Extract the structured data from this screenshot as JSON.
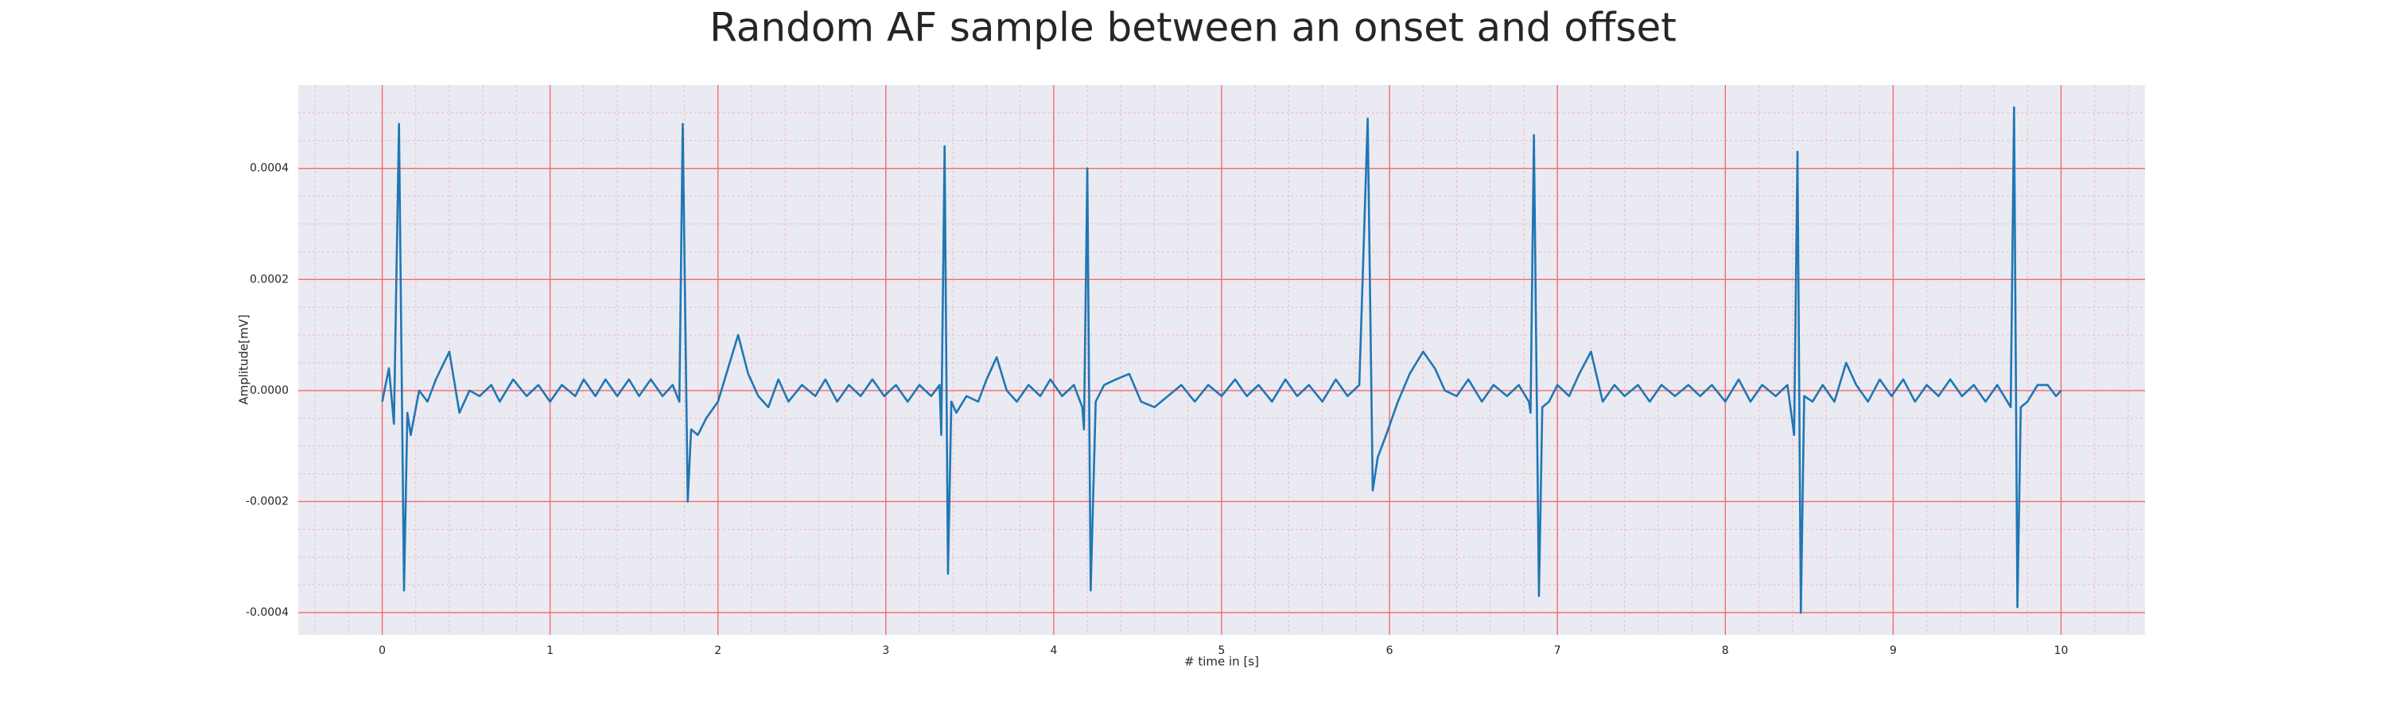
{
  "chart_data": {
    "type": "line",
    "title": "Random AF sample between an onset and offset",
    "xlabel": "# time in [s]",
    "ylabel": "Amplitude[mV]",
    "color": "#1f77b4",
    "grid": true,
    "minor_grid": true,
    "xlim": [
      -0.5,
      10.5
    ],
    "xticks": [
      0,
      1,
      2,
      3,
      4,
      5,
      6,
      7,
      8,
      9,
      10
    ],
    "ylim": [
      -0.00044,
      0.00055
    ],
    "yticks": [
      -0.0004,
      -0.0002,
      {
        "value": 0,
        "label": "0.0000"
      },
      0.0002,
      0.0004
    ],
    "x": [
      0,
      0.04,
      0.07,
      0.1,
      0.13,
      0.15,
      0.17,
      0.22,
      0.27,
      0.32,
      0.4,
      0.46,
      0.52,
      0.58,
      0.65,
      0.7,
      0.78,
      0.86,
      0.93,
      1.0,
      1.07,
      1.15,
      1.2,
      1.27,
      1.33,
      1.4,
      1.47,
      1.53,
      1.6,
      1.67,
      1.73,
      1.77,
      1.79,
      1.82,
      1.84,
      1.88,
      1.93,
      2.0,
      2.06,
      2.12,
      2.18,
      2.24,
      2.3,
      2.36,
      2.42,
      2.5,
      2.58,
      2.64,
      2.71,
      2.78,
      2.85,
      2.92,
      2.99,
      3.06,
      3.13,
      3.2,
      3.27,
      3.32,
      3.33,
      3.35,
      3.37,
      3.39,
      3.42,
      3.48,
      3.55,
      3.6,
      3.66,
      3.72,
      3.78,
      3.85,
      3.92,
      3.98,
      4.05,
      4.12,
      4.17,
      4.18,
      4.2,
      4.22,
      4.25,
      4.3,
      4.37,
      4.45,
      4.52,
      4.6,
      4.68,
      4.76,
      4.84,
      4.92,
      5.0,
      5.08,
      5.15,
      5.22,
      5.3,
      5.38,
      5.45,
      5.52,
      5.6,
      5.68,
      5.75,
      5.82,
      5.87,
      5.9,
      5.93,
      5.98,
      6.05,
      6.12,
      6.2,
      6.27,
      6.33,
      6.4,
      6.47,
      6.55,
      6.62,
      6.7,
      6.77,
      6.83,
      6.84,
      6.86,
      6.89,
      6.91,
      6.95,
      7.0,
      7.07,
      7.13,
      7.2,
      7.27,
      7.34,
      7.4,
      7.48,
      7.55,
      7.62,
      7.7,
      7.78,
      7.85,
      7.92,
      8.0,
      8.08,
      8.15,
      8.22,
      8.3,
      8.37,
      8.41,
      8.43,
      8.45,
      8.47,
      8.52,
      8.58,
      8.65,
      8.72,
      8.78,
      8.85,
      8.92,
      8.99,
      9.06,
      9.13,
      9.2,
      9.27,
      9.34,
      9.41,
      9.48,
      9.55,
      9.62,
      9.68,
      9.7,
      9.72,
      9.74,
      9.76,
      9.8,
      9.86,
      9.92,
      9.97,
      10.0
    ],
    "values": [
      -2e-05,
      4e-05,
      -6e-05,
      0.00048,
      -0.00036,
      -4e-05,
      -8e-05,
      0,
      -2e-05,
      2e-05,
      7e-05,
      -4e-05,
      0,
      -1e-05,
      1e-05,
      -2e-05,
      2e-05,
      -1e-05,
      1e-05,
      -2e-05,
      1e-05,
      -1e-05,
      2e-05,
      -1e-05,
      2e-05,
      -1e-05,
      2e-05,
      -1e-05,
      2e-05,
      -1e-05,
      1e-05,
      -2e-05,
      0.00048,
      -0.0002,
      -7e-05,
      -8e-05,
      -5e-05,
      -2e-05,
      4e-05,
      0.0001,
      3e-05,
      -1e-05,
      -3e-05,
      2e-05,
      -2e-05,
      1e-05,
      -1e-05,
      2e-05,
      -2e-05,
      1e-05,
      -1e-05,
      2e-05,
      -1e-05,
      1e-05,
      -2e-05,
      1e-05,
      -1e-05,
      1e-05,
      -8e-05,
      0.00044,
      -0.00033,
      -2e-05,
      -4e-05,
      -1e-05,
      -2e-05,
      2e-05,
      6e-05,
      0,
      -2e-05,
      1e-05,
      -1e-05,
      2e-05,
      -1e-05,
      1e-05,
      -3e-05,
      -7e-05,
      0.0004,
      -0.00036,
      -2e-05,
      1e-05,
      2e-05,
      3e-05,
      -2e-05,
      -3e-05,
      -1e-05,
      1e-05,
      -2e-05,
      1e-05,
      -1e-05,
      2e-05,
      -1e-05,
      1e-05,
      -2e-05,
      2e-05,
      -1e-05,
      1e-05,
      -2e-05,
      2e-05,
      -1e-05,
      1e-05,
      0.00049,
      -0.00018,
      -0.00012,
      -8e-05,
      -2e-05,
      3e-05,
      7e-05,
      4e-05,
      0,
      -1e-05,
      2e-05,
      -2e-05,
      1e-05,
      -1e-05,
      1e-05,
      -2e-05,
      -4e-05,
      0.00046,
      -0.00037,
      -3e-05,
      -2e-05,
      1e-05,
      -1e-05,
      3e-05,
      7e-05,
      -2e-05,
      1e-05,
      -1e-05,
      1e-05,
      -2e-05,
      1e-05,
      -1e-05,
      1e-05,
      -1e-05,
      1e-05,
      -2e-05,
      2e-05,
      -2e-05,
      1e-05,
      -1e-05,
      1e-05,
      -8e-05,
      0.00043,
      -0.0004,
      -1e-05,
      -2e-05,
      1e-05,
      -2e-05,
      5e-05,
      1e-05,
      -2e-05,
      2e-05,
      -1e-05,
      2e-05,
      -2e-05,
      1e-05,
      -1e-05,
      2e-05,
      -1e-05,
      1e-05,
      -2e-05,
      1e-05,
      -2e-05,
      -3e-05,
      0.00051,
      -0.00039,
      -3e-05,
      -2e-05,
      1e-05,
      1e-05,
      -1e-05,
      0
    ]
  }
}
